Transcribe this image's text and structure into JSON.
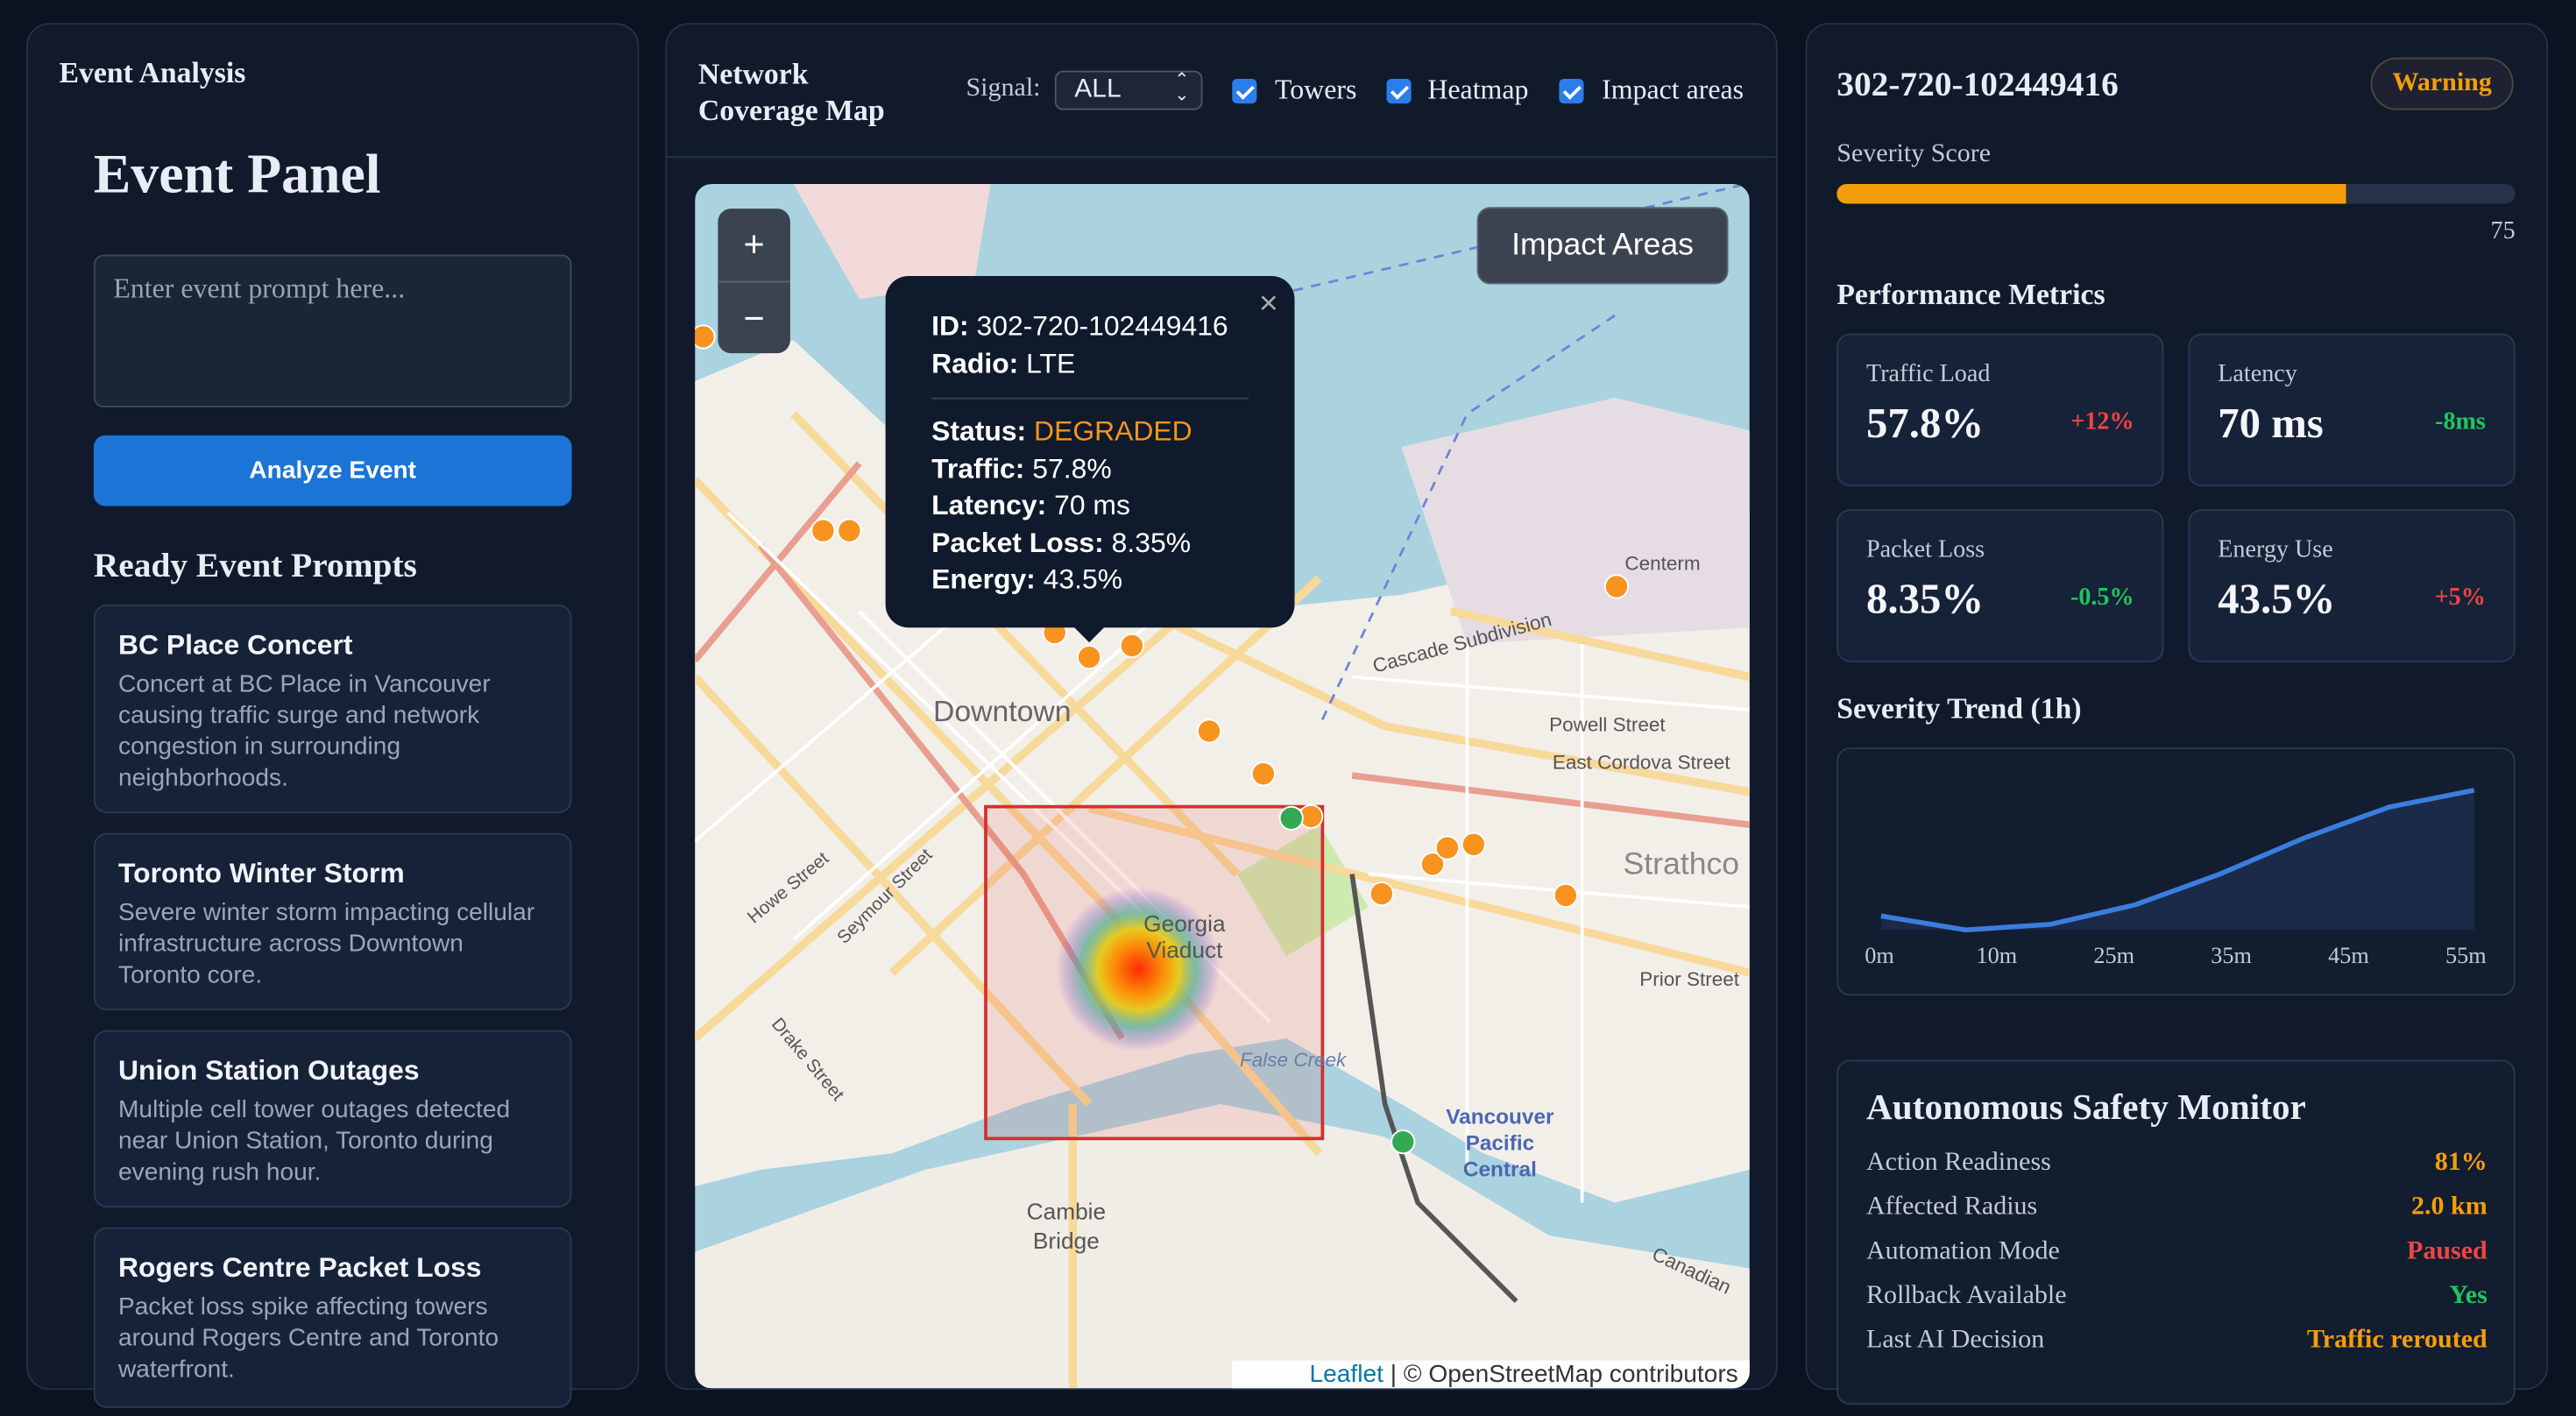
{
  "left_panel": {
    "title": "Event Analysis",
    "heading": "Event Panel",
    "prompt_placeholder": "Enter event prompt here...",
    "button": "Analyze Event",
    "prompts_title": "Ready Event Prompts",
    "prompts": [
      {
        "title": "BC Place Concert",
        "description": "Concert at BC Place in Vancouver causing traffic surge and network congestion in surrounding neighborhoods."
      },
      {
        "title": "Toronto Winter Storm",
        "description": "Severe winter storm impacting cellular infrastructure across Downtown Toronto core."
      },
      {
        "title": "Union Station Outages",
        "description": "Multiple cell tower outages detected near Union Station, Toronto during evening rush hour."
      },
      {
        "title": "Rogers Centre Packet Loss",
        "description": "Packet loss spike affecting towers around Rogers Centre and Toronto waterfront."
      }
    ]
  },
  "map_panel": {
    "title": "Network Coverage Map",
    "signal_label": "Signal:",
    "signal_value": "ALL",
    "toggles": [
      "Towers",
      "Heatmap",
      "Impact areas"
    ],
    "zoom_in": "+",
    "zoom_out": "−",
    "impact_button": "Impact Areas",
    "popup": {
      "close": "×",
      "id_label": "ID:",
      "id": "302-720-102449416",
      "radio_label": "Radio:",
      "radio": "LTE",
      "status_label": "Status:",
      "status": "DEGRADED",
      "traffic_label": "Traffic:",
      "traffic": "57.8%",
      "latency_label": "Latency:",
      "latency": "70 ms",
      "packet_loss_label": "Packet Loss:",
      "packet_loss": "8.35%",
      "energy_label": "Energy:",
      "energy": "43.5%"
    },
    "map_labels": [
      "Downtown",
      "Powell Street",
      "East Cordova Street",
      "Strathco",
      "Georgia",
      "Viaduct",
      "Prior Street",
      "False Creek",
      "Vancouver",
      "Pacific",
      "Central",
      "Cambie",
      "Bridge",
      "Howe Street",
      "Seymour Street",
      "Drake Street",
      "Cascade Subdivision",
      "Centerm",
      "Canadian"
    ],
    "attribution_link": "Leaflet",
    "attribution": "| © OpenStreetMap contributors"
  },
  "details": {
    "id": "302-720-102449416",
    "badge": "Warning",
    "severity_label": "Severity Score",
    "severity_score": 75,
    "metrics_title": "Performance Metrics",
    "metrics": [
      {
        "label": "Traffic Load",
        "value": "57.8%",
        "delta": "+12%"
      },
      {
        "label": "Latency",
        "value": "70 ms",
        "delta": "-8ms"
      },
      {
        "label": "Packet Loss",
        "value": "8.35%",
        "delta": "-0.5%"
      },
      {
        "label": "Energy Use",
        "value": "43.5%",
        "delta": "+5%"
      }
    ],
    "trend_title": "Severity Trend (1h)",
    "trend_labels": [
      "0m",
      "10m",
      "25m",
      "35m",
      "45m",
      "55m"
    ],
    "trend_values": [
      40,
      35,
      37,
      44,
      55,
      68,
      79,
      85
    ],
    "monitor_title": "Autonomous Safety Monitor",
    "monitor_rows": [
      {
        "label": "Action Readiness",
        "value": "81%"
      },
      {
        "label": "Affected Radius",
        "value": "2.0 km"
      },
      {
        "label": "Automation Mode",
        "value": "Paused"
      },
      {
        "label": "Rollback Available",
        "value": "Yes"
      },
      {
        "label": "Last AI Decision",
        "value": "Traffic rerouted"
      }
    ]
  }
}
